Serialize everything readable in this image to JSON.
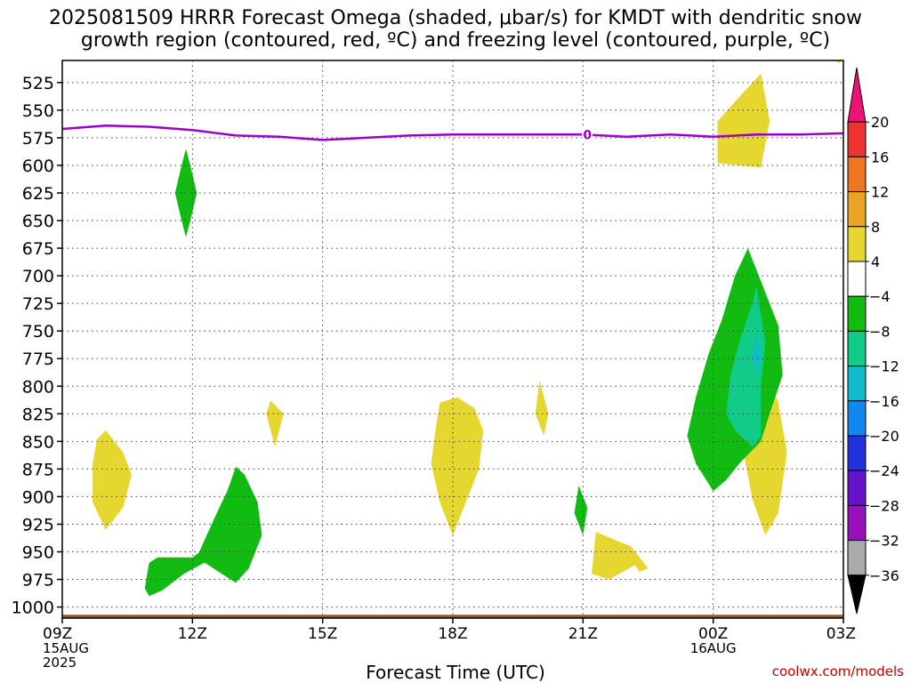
{
  "chart_data": {
    "type": "heatmap",
    "title_line1": "2025081509 HRRR Forecast Omega (shaded, μbar/s) for KMDT with dendritic snow",
    "title_line2": "growth region (contoured, red, ºC) and freezing level (contoured, purple, ºC)",
    "xlabel": "Forecast Time (UTC)",
    "credit": "coolwx.com/models",
    "x_unit": "hours since 09Z 15AUG 2025",
    "xlim": [
      0,
      18
    ],
    "ylim": [
      1010,
      505
    ],
    "x_ticks": [
      {
        "x": 0,
        "lines": [
          "09Z",
          "15AUG",
          "2025"
        ]
      },
      {
        "x": 3,
        "lines": [
          "12Z"
        ]
      },
      {
        "x": 6,
        "lines": [
          "15Z"
        ]
      },
      {
        "x": 9,
        "lines": [
          "18Z"
        ]
      },
      {
        "x": 12,
        "lines": [
          "21Z"
        ]
      },
      {
        "x": 15,
        "lines": [
          "00Z",
          "16AUG"
        ]
      },
      {
        "x": 18,
        "lines": [
          "03Z"
        ]
      }
    ],
    "y_ticks": [
      525,
      550,
      575,
      600,
      625,
      650,
      675,
      700,
      725,
      750,
      775,
      800,
      825,
      850,
      875,
      900,
      925,
      950,
      975,
      1000
    ],
    "grid": true,
    "colorbar": {
      "levels": [
        "20",
        "16",
        "12",
        "8",
        "4",
        "-4",
        "-8",
        "-12",
        "-16",
        "-20",
        "-24",
        "-28",
        "-32",
        "-36"
      ],
      "colors_top_to_bottom": [
        "#ee1176",
        "#ee3333",
        "#ee7722",
        "#e8a424",
        "#e6d630",
        "#ffffff",
        "#11bb11",
        "#11cc88",
        "#11bbcc",
        "#1188ee",
        "#2233dd",
        "#6611cc",
        "#9911bb",
        "#aaaaaa",
        "#000000"
      ]
    },
    "freezing_level": {
      "label": "0",
      "label_x": 12.1,
      "color": "#9900cc",
      "points": [
        [
          0,
          567
        ],
        [
          1,
          564
        ],
        [
          2,
          565
        ],
        [
          3,
          568
        ],
        [
          4,
          573
        ],
        [
          5,
          574
        ],
        [
          6,
          577
        ],
        [
          7,
          575
        ],
        [
          8,
          573
        ],
        [
          9,
          572
        ],
        [
          10,
          572
        ],
        [
          11,
          572
        ],
        [
          12,
          572
        ],
        [
          13,
          574
        ],
        [
          14,
          572
        ],
        [
          15,
          574
        ],
        [
          16,
          572
        ],
        [
          17,
          572
        ],
        [
          18,
          571
        ]
      ]
    },
    "terrain": {
      "color": "#a0522d",
      "top_pressure": 1007
    },
    "regions": [
      {
        "name": "omega-positive-4to8",
        "color": "#e6d630",
        "points": [
          [
            12.3,
            930
          ],
          [
            12.2,
            970
          ],
          [
            12.6,
            975
          ],
          [
            13.2,
            962
          ],
          [
            13.3,
            968
          ],
          [
            13.5,
            965
          ],
          [
            13.1,
            945
          ],
          [
            12.3,
            932
          ]
        ]
      },
      {
        "name": "omega-positive-4to8",
        "color": "#e6d630",
        "points": [
          [
            1.0,
            840
          ],
          [
            1.4,
            860
          ],
          [
            1.6,
            880
          ],
          [
            1.4,
            910
          ],
          [
            1.0,
            930
          ],
          [
            0.7,
            905
          ],
          [
            0.7,
            870
          ],
          [
            0.8,
            848
          ]
        ]
      },
      {
        "name": "omega-positive-4to8",
        "color": "#e6d630",
        "points": [
          [
            4.8,
            813
          ],
          [
            5.1,
            825
          ],
          [
            4.9,
            855
          ],
          [
            4.7,
            825
          ]
        ]
      },
      {
        "name": "omega-positive-4to8",
        "color": "#e6d630",
        "points": [
          [
            8.7,
            815
          ],
          [
            9.1,
            810
          ],
          [
            9.5,
            820
          ],
          [
            9.7,
            840
          ],
          [
            9.6,
            875
          ],
          [
            9.3,
            905
          ],
          [
            9.0,
            935
          ],
          [
            8.7,
            905
          ],
          [
            8.5,
            870
          ],
          [
            8.6,
            840
          ]
        ]
      },
      {
        "name": "omega-positive-4to8",
        "color": "#e6d630",
        "points": [
          [
            11.0,
            795
          ],
          [
            11.2,
            825
          ],
          [
            11.1,
            845
          ],
          [
            10.9,
            825
          ]
        ]
      },
      {
        "name": "omega-positive-4to8",
        "color": "#e6d630",
        "points": [
          [
            15.1,
            598
          ],
          [
            15.1,
            560
          ],
          [
            15.6,
            538
          ],
          [
            16.1,
            517
          ],
          [
            16.3,
            560
          ],
          [
            16.1,
            602
          ],
          [
            15.6,
            600
          ]
        ]
      },
      {
        "name": "omega-positive-4to8",
        "color": "#e6d630",
        "points": [
          [
            18.0,
            505
          ],
          [
            17.9,
            507
          ],
          [
            17.8,
            505
          ]
        ]
      },
      {
        "name": "omega-positive-4to8",
        "color": "#e6d630",
        "points": [
          [
            16.2,
            781
          ],
          [
            16.5,
            815
          ],
          [
            16.7,
            860
          ],
          [
            16.5,
            915
          ],
          [
            16.2,
            935
          ],
          [
            15.9,
            902
          ],
          [
            15.7,
            860
          ],
          [
            15.9,
            815
          ]
        ]
      },
      {
        "name": "omega-negative-m4to-m8",
        "color": "#11bb11",
        "points": [
          [
            2.85,
            585
          ],
          [
            2.95,
            600
          ],
          [
            3.1,
            625
          ],
          [
            2.95,
            650
          ],
          [
            2.85,
            665
          ],
          [
            2.75,
            650
          ],
          [
            2.6,
            625
          ],
          [
            2.75,
            600
          ]
        ]
      },
      {
        "name": "omega-negative-m4to-m8",
        "color": "#11bb11",
        "points": [
          [
            1.9,
            983
          ],
          [
            2.0,
            960
          ],
          [
            2.2,
            955
          ],
          [
            3.0,
            955
          ],
          [
            3.7,
            935
          ],
          [
            3.5,
            955
          ],
          [
            2.8,
            970
          ],
          [
            2.3,
            985
          ],
          [
            2.0,
            990
          ]
        ]
      },
      {
        "name": "omega-negative-m4to-m8",
        "color": "#11bb11",
        "points": [
          [
            3.1,
            955
          ],
          [
            3.5,
            920
          ],
          [
            3.8,
            895
          ],
          [
            4.0,
            873
          ],
          [
            4.2,
            880
          ],
          [
            4.5,
            905
          ],
          [
            4.6,
            935
          ],
          [
            4.3,
            965
          ],
          [
            4.0,
            978
          ],
          [
            3.6,
            968
          ]
        ]
      },
      {
        "name": "omega-negative-m4to-m8",
        "color": "#11bb11",
        "points": [
          [
            11.9,
            890
          ],
          [
            12.1,
            910
          ],
          [
            12.0,
            935
          ],
          [
            11.8,
            915
          ]
        ]
      },
      {
        "name": "omega-negative-m4to-m8",
        "color": "#11bb11",
        "points": [
          [
            15.0,
            895
          ],
          [
            14.6,
            870
          ],
          [
            14.4,
            845
          ],
          [
            14.6,
            810
          ],
          [
            14.9,
            770
          ],
          [
            15.2,
            740
          ],
          [
            15.5,
            700
          ],
          [
            15.8,
            675
          ],
          [
            16.1,
            705
          ],
          [
            16.5,
            745
          ],
          [
            16.6,
            790
          ],
          [
            16.3,
            825
          ],
          [
            16.1,
            850
          ],
          [
            15.6,
            870
          ],
          [
            15.3,
            885
          ]
        ]
      },
      {
        "name": "omega-negative-m8to-m12",
        "color": "#11cc88",
        "points": [
          [
            15.5,
            840
          ],
          [
            15.3,
            825
          ],
          [
            15.4,
            790
          ],
          [
            15.6,
            760
          ],
          [
            15.9,
            725
          ],
          [
            16.0,
            710
          ],
          [
            16.2,
            760
          ],
          [
            16.1,
            800
          ],
          [
            16.1,
            845
          ],
          [
            15.9,
            855
          ]
        ]
      },
      {
        "name": "omega-negative-m12to-m16",
        "color": "#11bbcc",
        "points": [
          [
            16.0,
            750
          ],
          [
            16.1,
            775
          ],
          [
            16.0,
            790
          ],
          [
            15.9,
            775
          ]
        ]
      }
    ]
  }
}
